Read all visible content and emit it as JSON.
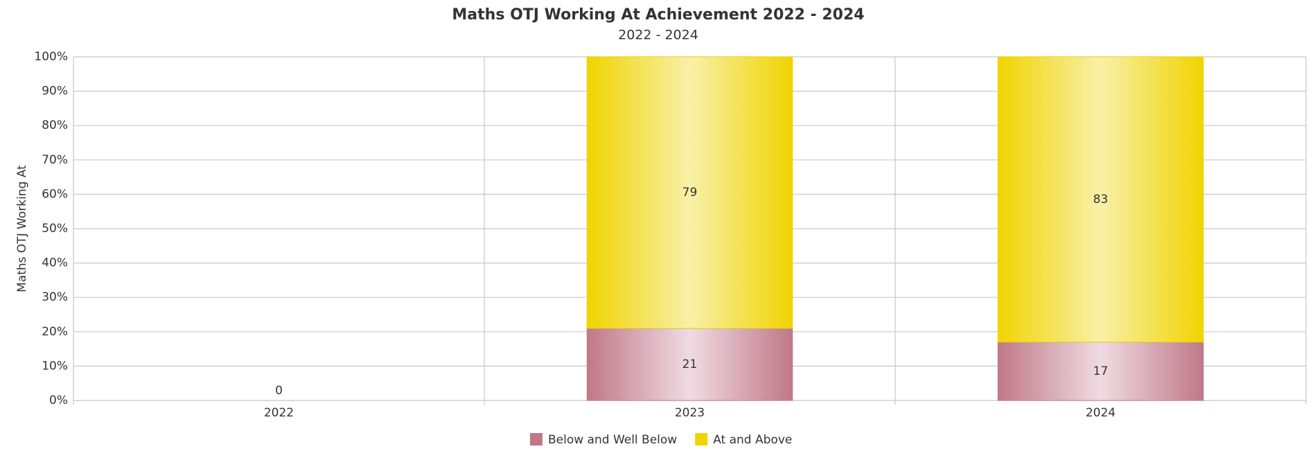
{
  "chart_data": {
    "type": "stacked_bar",
    "title": "Maths OTJ Working At Achievement 2022 - 2024",
    "subtitle": "2022 - 2024",
    "y_label": "Maths OTJ Working At",
    "categories": [
      "2022",
      "2023",
      "2024"
    ],
    "series": [
      {
        "name": "Below and Well Below",
        "color": "#c07888",
        "values": [
          0,
          21,
          17
        ]
      },
      {
        "name": "At and Above",
        "color": "#f0d400",
        "values": [
          null,
          79,
          83
        ]
      }
    ],
    "ylim": [
      0,
      100
    ],
    "yticks": [
      {
        "value": 0,
        "label": "0%"
      },
      {
        "value": 10,
        "label": "10%"
      },
      {
        "value": 20,
        "label": "20%"
      },
      {
        "value": 30,
        "label": "30%"
      },
      {
        "value": 40,
        "label": "40%"
      },
      {
        "value": 50,
        "label": "50%"
      },
      {
        "value": 60,
        "label": "60%"
      },
      {
        "value": 70,
        "label": "70%"
      },
      {
        "value": 80,
        "label": "80%"
      },
      {
        "value": 90,
        "label": "90%"
      },
      {
        "value": 100,
        "label": "100%"
      }
    ],
    "grid": true,
    "legend": "bottom"
  }
}
